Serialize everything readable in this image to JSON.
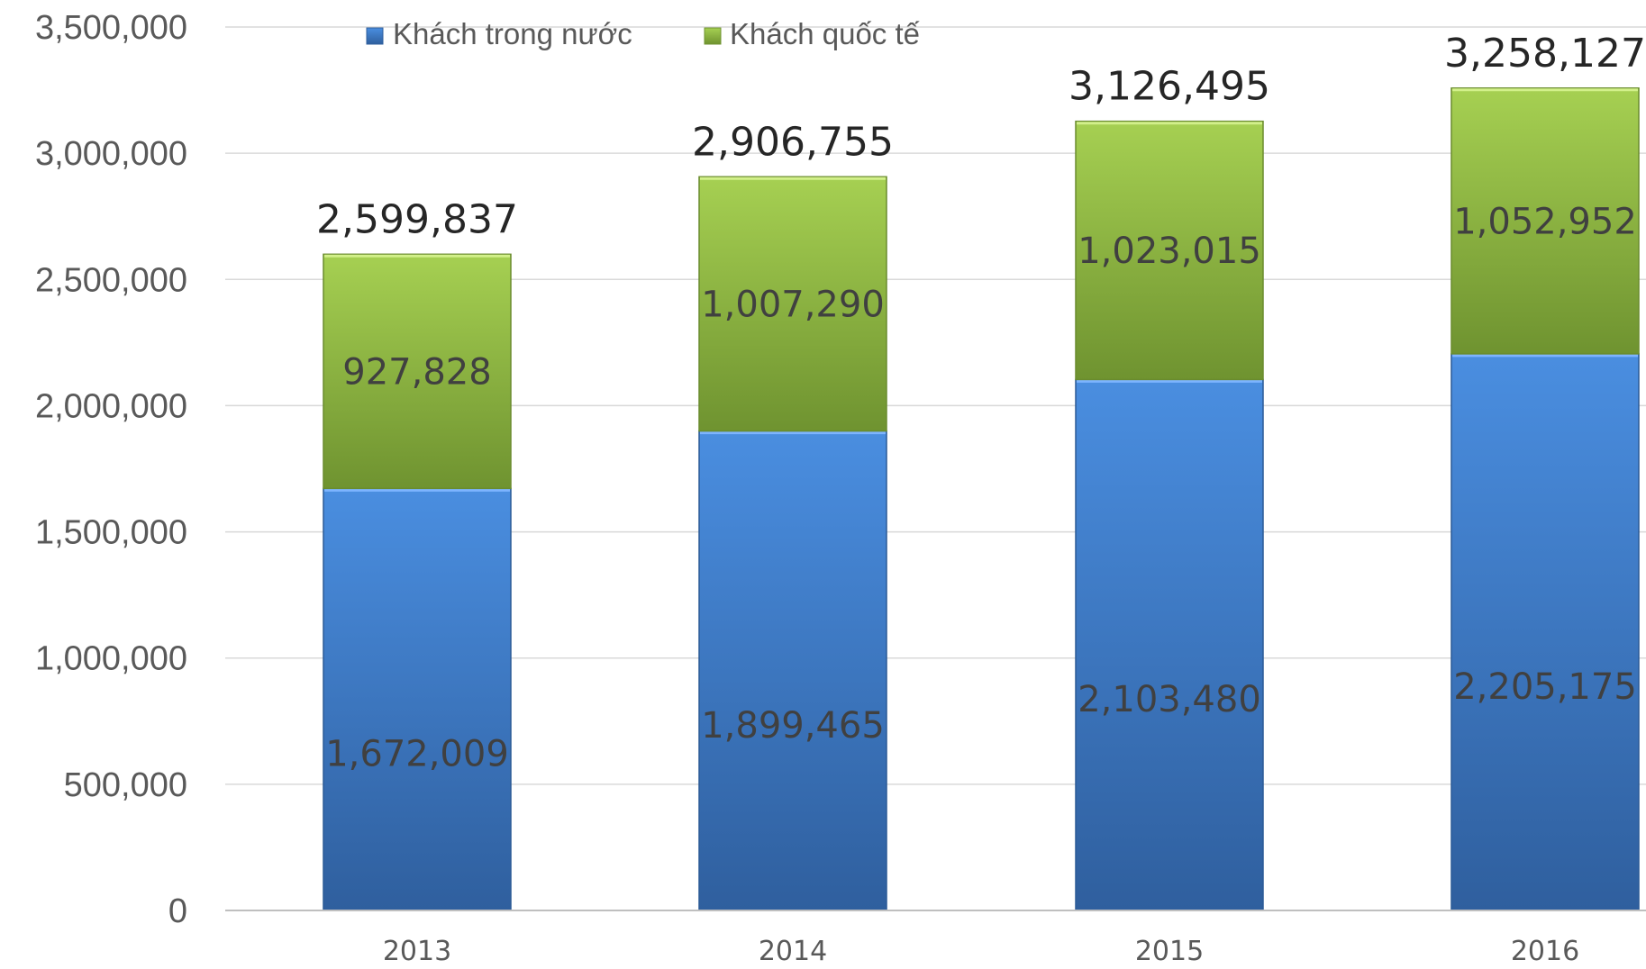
{
  "chart_data": {
    "type": "bar",
    "stacked": true,
    "categories": [
      "2013",
      "2014",
      "2015",
      "2016"
    ],
    "series": [
      {
        "name": "Khách trong nước",
        "values": [
          1672009,
          1899465,
          2103480,
          2205175
        ],
        "labels": [
          "1,672,009",
          "1,899,465",
          "2,103,480",
          "2,205,175"
        ],
        "color": "#3f7fd0"
      },
      {
        "name": "Khách quốc tế",
        "values": [
          927828,
          1007290,
          1023015,
          1052952
        ],
        "labels": [
          "927,828",
          "1,007,290",
          "1,023,015",
          "1,052,952"
        ],
        "color": "#8cb83c"
      }
    ],
    "totals": [
      2599837,
      2906755,
      3126495,
      3258127
    ],
    "total_labels": [
      "2,599,837",
      "2,906,755",
      "3,126,495",
      "3,258,127"
    ],
    "ylim": [
      0,
      3500000
    ],
    "yticks": [
      0,
      500000,
      1000000,
      1500000,
      2000000,
      2500000,
      3000000,
      3500000
    ],
    "ytick_labels": [
      "0",
      "500,000",
      "1,000,000",
      "1,500,000",
      "2,000,000",
      "2,500,000",
      "3,000,000",
      "3,500,000"
    ],
    "grid": true,
    "legend_position": "top",
    "title": "",
    "xlabel": "",
    "ylabel": ""
  }
}
